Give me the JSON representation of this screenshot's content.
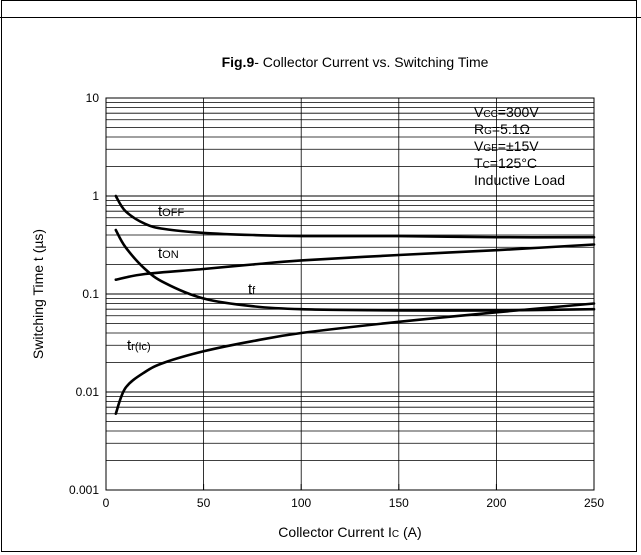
{
  "chart_data": {
    "type": "line",
    "title_bold": "Fig.9",
    "title_rest": "- Collector Current vs. Switching Time",
    "xlabel": "Collector Current Ic  (A)",
    "xlabel_parts": [
      "Collector Current I",
      "C",
      "  (A)"
    ],
    "ylabel": "Switching Time t  (µs)",
    "xlim": [
      0,
      250
    ],
    "ylim": [
      0.001,
      10
    ],
    "yscale": "log",
    "x_ticks": [
      0,
      50,
      100,
      150,
      200,
      250
    ],
    "x_tick_labels": [
      "0",
      "50",
      "100",
      "150",
      "200",
      "250"
    ],
    "y_ticks": [
      0.001,
      0.01,
      0.1,
      1,
      10
    ],
    "y_tick_labels": [
      "0.001",
      "0.01",
      "0.1",
      "1",
      "10"
    ],
    "grid": true,
    "series": [
      {
        "name": "tOFF",
        "label_main": "t",
        "label_sub": "OFF",
        "x": [
          5,
          10,
          20,
          30,
          50,
          75,
          100,
          150,
          200,
          250
        ],
        "values": [
          1.0,
          0.7,
          0.52,
          0.46,
          0.42,
          0.4,
          0.39,
          0.39,
          0.38,
          0.38
        ]
      },
      {
        "name": "tON",
        "label_main": "t",
        "label_sub": "ON",
        "x": [
          5,
          20,
          50,
          75,
          100,
          150,
          200,
          250
        ],
        "values": [
          0.14,
          0.16,
          0.18,
          0.2,
          0.22,
          0.25,
          0.28,
          0.32
        ]
      },
      {
        "name": "tf",
        "label_main": "t",
        "label_sub": "f",
        "x": [
          5,
          10,
          20,
          30,
          50,
          75,
          100,
          150,
          200,
          250
        ],
        "values": [
          0.45,
          0.3,
          0.18,
          0.13,
          0.09,
          0.075,
          0.07,
          0.068,
          0.068,
          0.07
        ]
      },
      {
        "name": "tr(Ic)",
        "label_main": "t",
        "label_sub": "r(Ic)",
        "x": [
          5,
          10,
          20,
          30,
          50,
          75,
          100,
          150,
          200,
          250
        ],
        "values": [
          0.006,
          0.011,
          0.016,
          0.02,
          0.026,
          0.033,
          0.04,
          0.052,
          0.065,
          0.08
        ]
      }
    ],
    "annotations": [
      {
        "main": "V",
        "sub": "CC",
        "rest": "=300V"
      },
      {
        "main": "R",
        "sub": "G",
        "rest": "=5.1Ω"
      },
      {
        "main": "V",
        "sub": "GE",
        "rest": "=±15V"
      },
      {
        "main": "T",
        "sub": "C",
        "rest": "=125°C"
      },
      {
        "main": "",
        "sub": "",
        "rest": "Inductive Load"
      }
    ]
  }
}
